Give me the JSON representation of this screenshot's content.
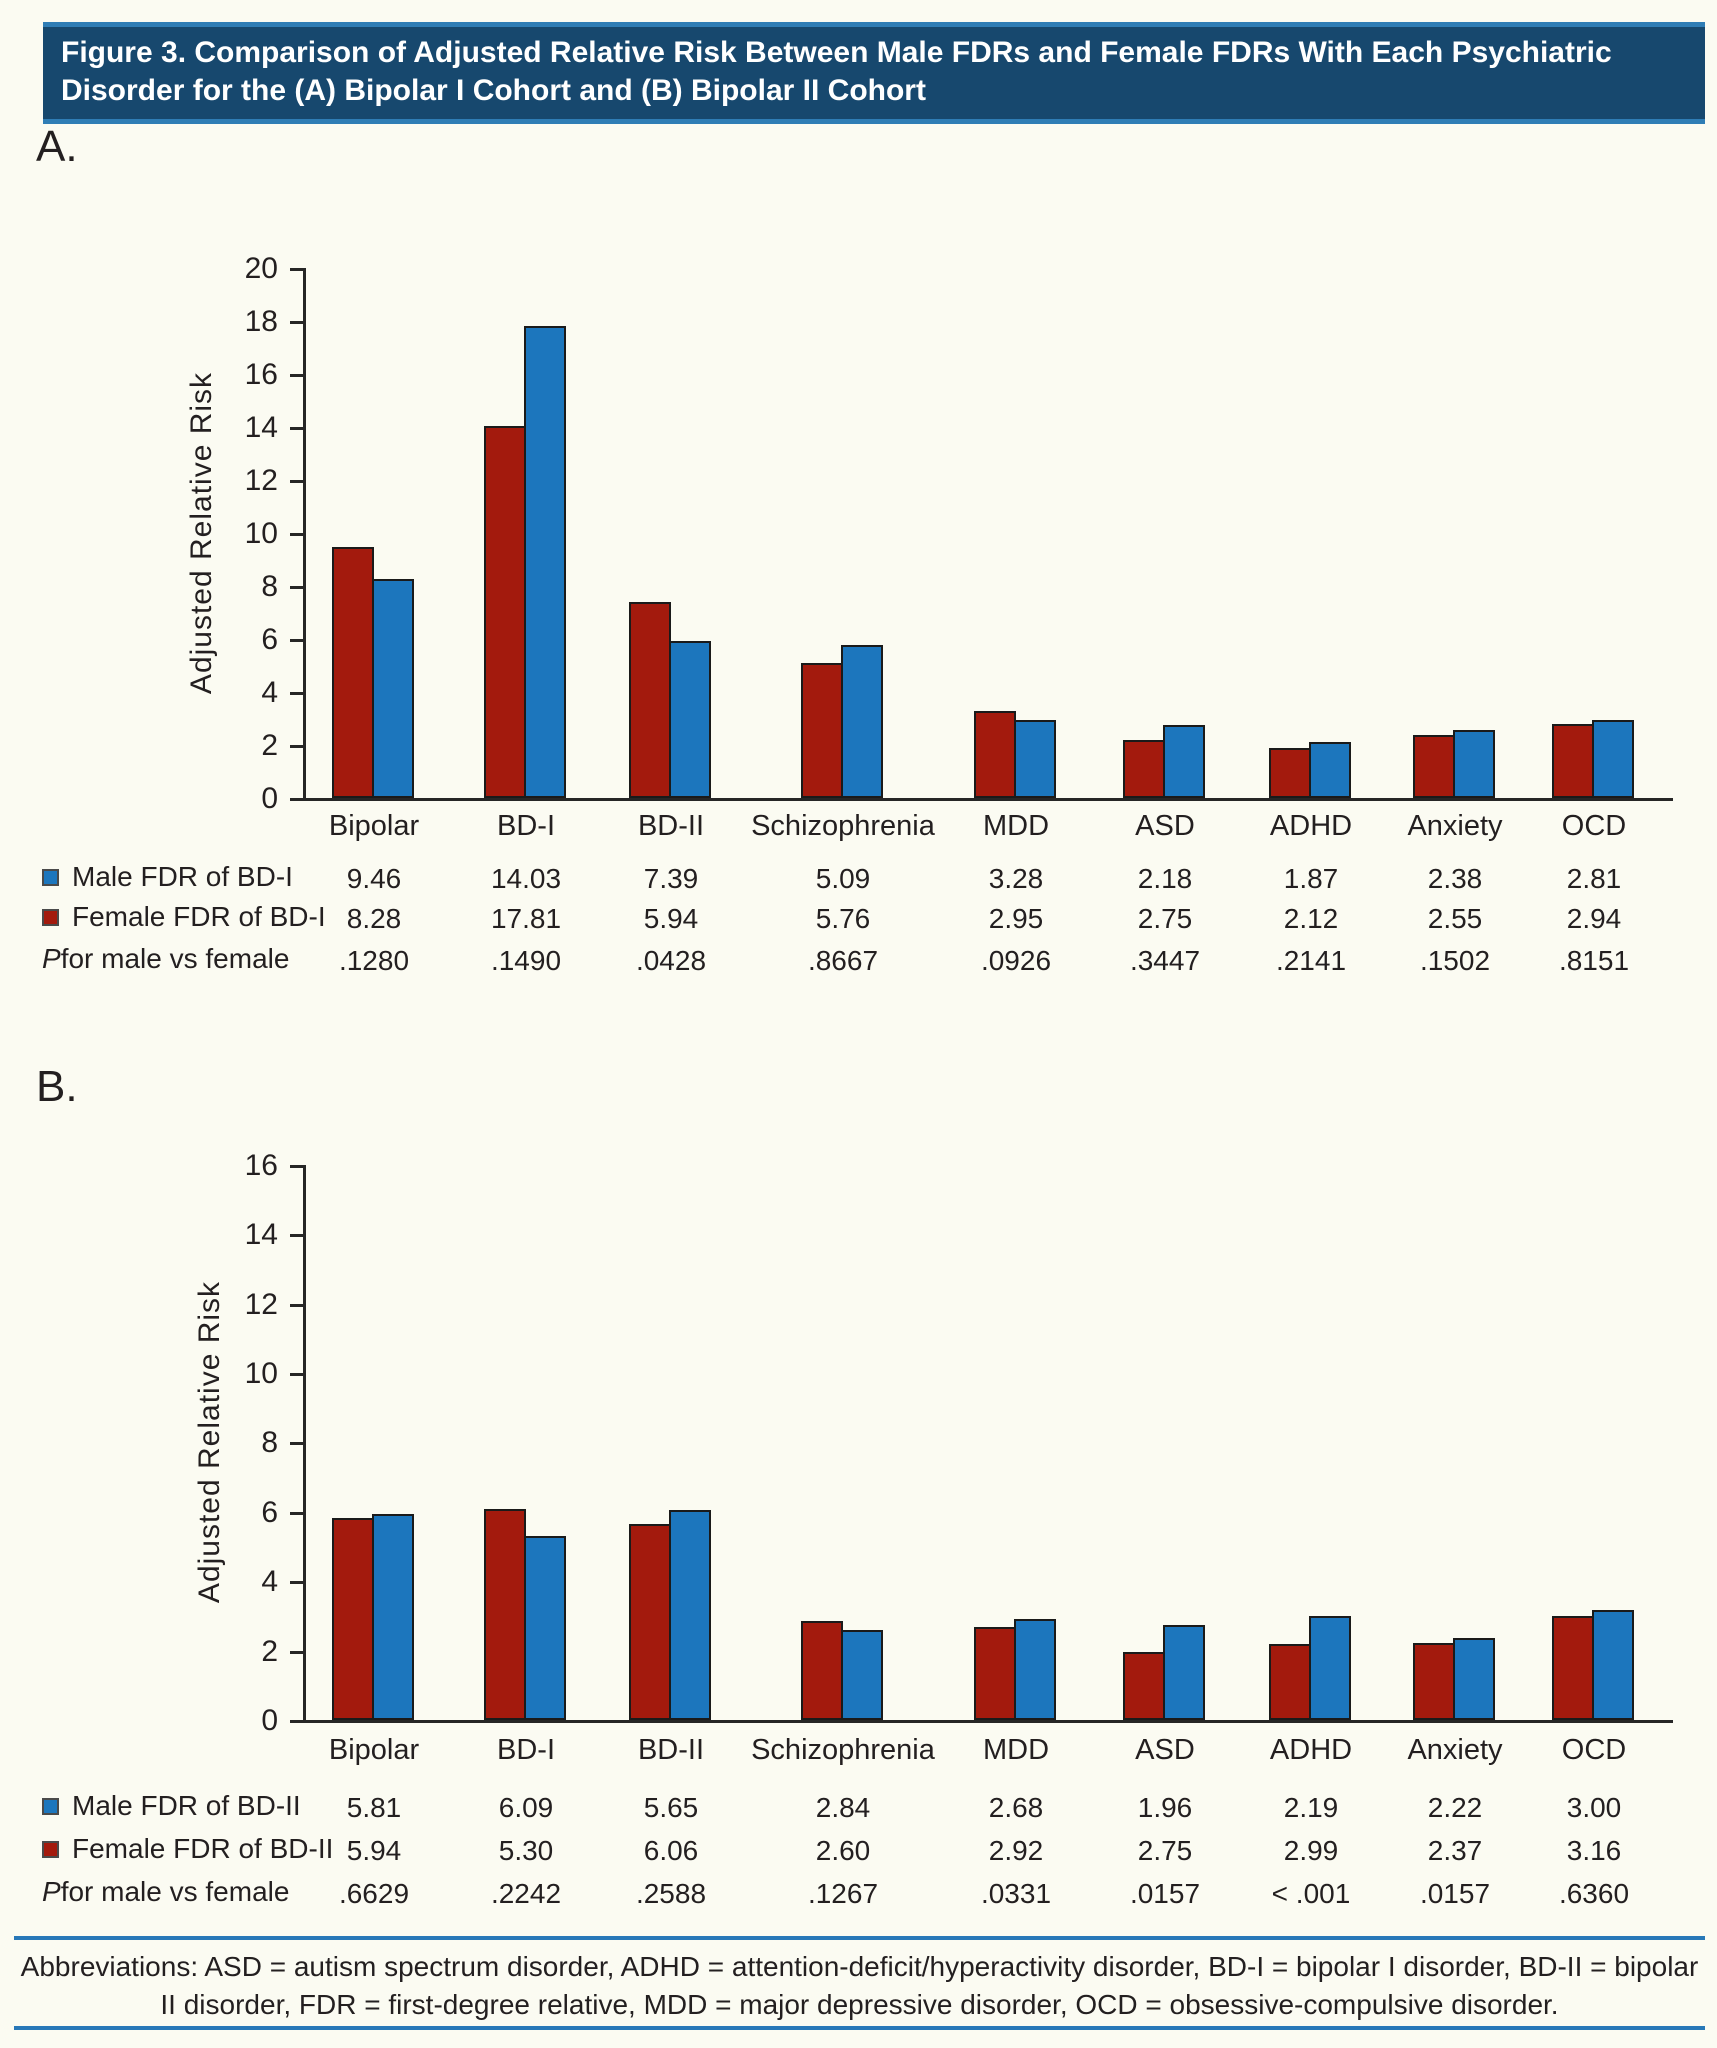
{
  "figure": {
    "title": "Figure 3. Comparison of Adjusted Relative Risk Between Male FDRs and Female FDRs With Each Psychiatric Disorder for the (A) Bipolar I Cohort and (B) Bipolar II Cohort"
  },
  "colors": {
    "male_legend": "#1C76BD",
    "female_legend": "#A31A0D",
    "first_bar": "#A31A0D",
    "second_bar": "#1C76BD",
    "title_bar_bg": "#17486E",
    "title_bar_stripe": "#2F7DB5",
    "footer_rule": "#2878B8"
  },
  "chart_data": [
    {
      "panel": "A.",
      "type": "bar",
      "ylabel": "Adjusted Relative Risk",
      "ylim": [
        0,
        20
      ],
      "ytick_step": 2,
      "grid": false,
      "legend_position": "table-left",
      "categories": [
        "Bipolar",
        "BD-I",
        "BD-II",
        "Schizophrenia",
        "MDD",
        "ASD",
        "ADHD",
        "Anxiety",
        "OCD"
      ],
      "series": [
        {
          "name": "Male FDR of BD-I",
          "legend_color": "#1C76BD",
          "bar_color": "#A31A0D",
          "values": [
            "9.46",
            "14.03",
            "7.39",
            "5.09",
            "3.28",
            "2.18",
            "1.87",
            "2.38",
            "2.81"
          ]
        },
        {
          "name": "Female FDR of BD-I",
          "legend_color": "#A31A0D",
          "bar_color": "#1C76BD",
          "values": [
            "8.28",
            "17.81",
            "5.94",
            "5.76",
            "2.95",
            "2.75",
            "2.12",
            "2.55",
            "2.94"
          ]
        }
      ],
      "p_row": {
        "label_italic": "P",
        "label_rest": " for male vs female",
        "values": [
          ".1280",
          ".1490",
          ".0428",
          ".8667",
          ".0926",
          ".3447",
          ".2141",
          ".1502",
          ".8151"
        ]
      }
    },
    {
      "panel": "B.",
      "type": "bar",
      "ylabel": "Adjusted Relative Risk",
      "ylim": [
        0,
        16
      ],
      "ytick_step": 2,
      "grid": false,
      "legend_position": "table-left",
      "categories": [
        "Bipolar",
        "BD-I",
        "BD-II",
        "Schizophrenia",
        "MDD",
        "ASD",
        "ADHD",
        "Anxiety",
        "OCD"
      ],
      "series": [
        {
          "name": "Male FDR of BD-II",
          "legend_color": "#1C76BD",
          "bar_color": "#A31A0D",
          "values": [
            "5.81",
            "6.09",
            "5.65",
            "2.84",
            "2.68",
            "1.96",
            "2.19",
            "2.22",
            "3.00"
          ]
        },
        {
          "name": "Female FDR of BD-II",
          "legend_color": "#A31A0D",
          "bar_color": "#1C76BD",
          "values": [
            "5.94",
            "5.30",
            "6.06",
            "2.60",
            "2.92",
            "2.75",
            "2.99",
            "2.37",
            "3.16"
          ]
        }
      ],
      "p_row": {
        "label_italic": "P",
        "label_rest": " for male vs female",
        "values": [
          ".6629",
          ".2242",
          ".2588",
          ".1267",
          ".0331",
          ".0157",
          "< .001",
          ".0157",
          ".6360"
        ]
      }
    }
  ],
  "footer": {
    "abbreviations": "Abbreviations: ASD = autism spectrum disorder, ADHD = attention-deficit/hyperactivity disorder, BD-I = bipolar I disorder, BD-II = bipolar II disorder, FDR = first-degree relative, MDD = major depressive disorder, OCD = obsessive-compulsive disorder."
  }
}
